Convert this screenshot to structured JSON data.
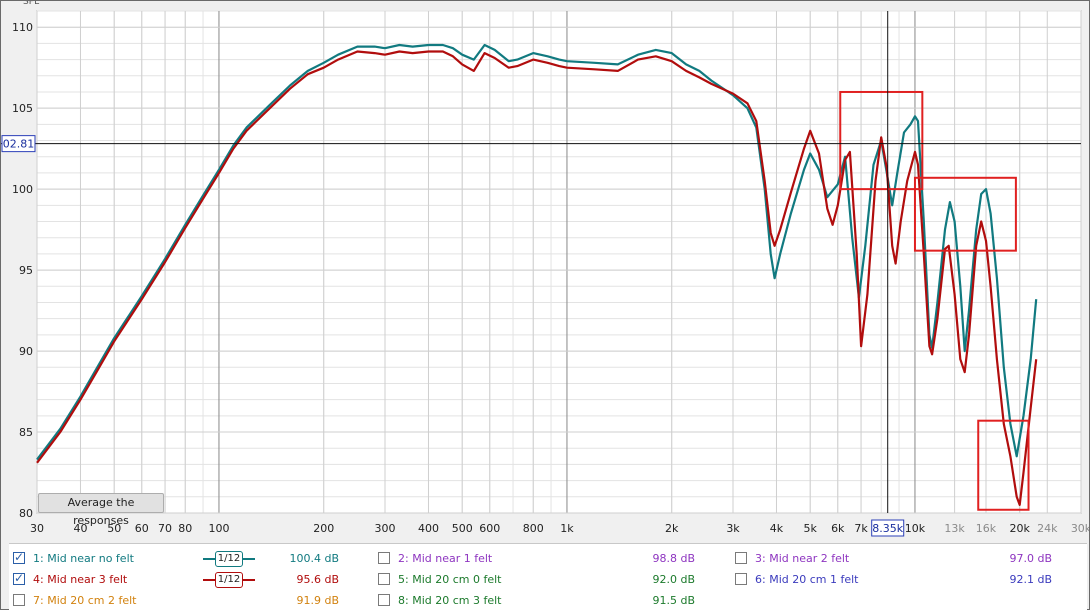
{
  "chart_data": {
    "type": "line",
    "ylabel": "SPL",
    "x_scale": "log",
    "xlim": [
      30,
      30000
    ],
    "ylim": [
      80,
      111
    ],
    "y_ticks": [
      "80",
      "85",
      "90",
      "95",
      "100",
      "105",
      "110"
    ],
    "y_tick_values": [
      80,
      85,
      90,
      95,
      100,
      105,
      110
    ],
    "x_tick_values": [
      30,
      40,
      50,
      60,
      70,
      80,
      100,
      200,
      300,
      400,
      500,
      600,
      800,
      1000,
      2000,
      3000,
      4000,
      5000,
      6000,
      7000,
      10000,
      13000,
      16000,
      20000,
      24000,
      30000
    ],
    "x_ticks": [
      "30",
      "40",
      "50",
      "60",
      "70",
      "80",
      "100",
      "200",
      "300",
      "400",
      "500",
      "600",
      "800",
      "1k",
      "2k",
      "3k",
      "4k",
      "5k",
      "6k",
      "7k",
      "10k",
      "13k",
      "16k",
      "20k",
      "24k",
      "30k"
    ],
    "x_tick_faint": [
      false,
      false,
      false,
      false,
      false,
      false,
      false,
      false,
      false,
      false,
      false,
      false,
      false,
      false,
      false,
      false,
      false,
      false,
      false,
      false,
      false,
      true,
      true,
      false,
      true,
      true
    ],
    "cursor": {
      "x": 8350,
      "y": 102.81,
      "x_label": "8.35k",
      "y_label": "02.81"
    },
    "highlights": [
      {
        "x0": 6100,
        "x1": 10500,
        "y0": 100,
        "y1": 106
      },
      {
        "x0": 10000,
        "x1": 19500,
        "y0": 96.2,
        "y1": 100.7
      },
      {
        "x0": 15200,
        "x1": 21200,
        "y0": 80.2,
        "y1": 85.7
      }
    ],
    "series": [
      {
        "name": "1: Mid near no felt",
        "color": "#117a80",
        "points": [
          [
            30,
            83.3
          ],
          [
            35,
            85.2
          ],
          [
            40,
            87.2
          ],
          [
            45,
            89.1
          ],
          [
            50,
            90.8
          ],
          [
            60,
            93.4
          ],
          [
            70,
            95.7
          ],
          [
            80,
            97.8
          ],
          [
            90,
            99.6
          ],
          [
            100,
            101.2
          ],
          [
            110,
            102.7
          ],
          [
            120,
            103.8
          ],
          [
            140,
            105.2
          ],
          [
            160,
            106.4
          ],
          [
            180,
            107.3
          ],
          [
            200,
            107.8
          ],
          [
            220,
            108.3
          ],
          [
            250,
            108.8
          ],
          [
            280,
            108.8
          ],
          [
            300,
            108.7
          ],
          [
            330,
            108.9
          ],
          [
            360,
            108.8
          ],
          [
            400,
            108.9
          ],
          [
            440,
            108.9
          ],
          [
            470,
            108.7
          ],
          [
            500,
            108.3
          ],
          [
            540,
            108.0
          ],
          [
            580,
            108.9
          ],
          [
            620,
            108.6
          ],
          [
            680,
            107.9
          ],
          [
            720,
            108.0
          ],
          [
            800,
            108.4
          ],
          [
            880,
            108.2
          ],
          [
            950,
            108.0
          ],
          [
            1000,
            107.9
          ],
          [
            1200,
            107.8
          ],
          [
            1400,
            107.7
          ],
          [
            1600,
            108.3
          ],
          [
            1800,
            108.6
          ],
          [
            2000,
            108.4
          ],
          [
            2200,
            107.7
          ],
          [
            2400,
            107.3
          ],
          [
            2600,
            106.7
          ],
          [
            3000,
            105.8
          ],
          [
            3300,
            105.0
          ],
          [
            3500,
            103.8
          ],
          [
            3700,
            100.0
          ],
          [
            3850,
            96.0
          ],
          [
            3950,
            94.5
          ],
          [
            4100,
            96.0
          ],
          [
            4400,
            98.5
          ],
          [
            4800,
            101.2
          ],
          [
            5000,
            102.2
          ],
          [
            5300,
            101.2
          ],
          [
            5600,
            99.5
          ],
          [
            6000,
            100.3
          ],
          [
            6300,
            102.0
          ],
          [
            6600,
            97.0
          ],
          [
            6900,
            93.3
          ],
          [
            7200,
            96.5
          ],
          [
            7600,
            101.5
          ],
          [
            8000,
            103.0
          ],
          [
            8300,
            101.0
          ],
          [
            8600,
            99.0
          ],
          [
            8900,
            101.0
          ],
          [
            9300,
            103.5
          ],
          [
            9700,
            104.0
          ],
          [
            10000,
            104.5
          ],
          [
            10200,
            104.2
          ],
          [
            10600,
            98.0
          ],
          [
            11000,
            91.0
          ],
          [
            11200,
            90.2
          ],
          [
            11600,
            93.0
          ],
          [
            12200,
            97.5
          ],
          [
            12600,
            99.2
          ],
          [
            13000,
            98.0
          ],
          [
            13500,
            94.0
          ],
          [
            13900,
            90.0
          ],
          [
            14300,
            92.5
          ],
          [
            15000,
            97.5
          ],
          [
            15500,
            99.7
          ],
          [
            16000,
            100.0
          ],
          [
            16500,
            98.5
          ],
          [
            17200,
            94.5
          ],
          [
            18000,
            89.0
          ],
          [
            18800,
            85.5
          ],
          [
            19600,
            83.5
          ],
          [
            20500,
            86.0
          ],
          [
            21500,
            89.5
          ],
          [
            22300,
            93.2
          ]
        ]
      },
      {
        "name": "4: Mid near 3 felt",
        "color": "#b10d0d",
        "points": [
          [
            30,
            83.1
          ],
          [
            35,
            85.0
          ],
          [
            40,
            87.0
          ],
          [
            45,
            88.9
          ],
          [
            50,
            90.6
          ],
          [
            60,
            93.2
          ],
          [
            70,
            95.5
          ],
          [
            80,
            97.6
          ],
          [
            90,
            99.4
          ],
          [
            100,
            101.0
          ],
          [
            110,
            102.5
          ],
          [
            120,
            103.6
          ],
          [
            140,
            105.0
          ],
          [
            160,
            106.2
          ],
          [
            180,
            107.1
          ],
          [
            200,
            107.5
          ],
          [
            220,
            108.0
          ],
          [
            250,
            108.5
          ],
          [
            280,
            108.4
          ],
          [
            300,
            108.3
          ],
          [
            330,
            108.5
          ],
          [
            360,
            108.4
          ],
          [
            400,
            108.5
          ],
          [
            440,
            108.5
          ],
          [
            470,
            108.2
          ],
          [
            500,
            107.7
          ],
          [
            540,
            107.3
          ],
          [
            580,
            108.4
          ],
          [
            620,
            108.1
          ],
          [
            680,
            107.5
          ],
          [
            720,
            107.6
          ],
          [
            800,
            108.0
          ],
          [
            880,
            107.8
          ],
          [
            950,
            107.6
          ],
          [
            1000,
            107.5
          ],
          [
            1200,
            107.4
          ],
          [
            1400,
            107.3
          ],
          [
            1600,
            108.0
          ],
          [
            1800,
            108.2
          ],
          [
            2000,
            107.9
          ],
          [
            2200,
            107.3
          ],
          [
            2400,
            106.9
          ],
          [
            2600,
            106.5
          ],
          [
            3000,
            105.9
          ],
          [
            3300,
            105.3
          ],
          [
            3500,
            104.2
          ],
          [
            3700,
            100.5
          ],
          [
            3850,
            97.3
          ],
          [
            3950,
            96.5
          ],
          [
            4100,
            97.5
          ],
          [
            4400,
            99.8
          ],
          [
            4800,
            102.5
          ],
          [
            5000,
            103.6
          ],
          [
            5300,
            102.2
          ],
          [
            5600,
            98.8
          ],
          [
            5800,
            97.8
          ],
          [
            6000,
            99.0
          ],
          [
            6300,
            101.8
          ],
          [
            6500,
            102.3
          ],
          [
            6800,
            96.0
          ],
          [
            7000,
            90.3
          ],
          [
            7300,
            93.5
          ],
          [
            7700,
            100.5
          ],
          [
            8000,
            103.2
          ],
          [
            8300,
            101.3
          ],
          [
            8600,
            96.5
          ],
          [
            8800,
            95.4
          ],
          [
            9100,
            98.0
          ],
          [
            9500,
            100.5
          ],
          [
            10000,
            102.3
          ],
          [
            10200,
            101.5
          ],
          [
            10600,
            96.0
          ],
          [
            11000,
            90.3
          ],
          [
            11200,
            89.8
          ],
          [
            11600,
            92.0
          ],
          [
            12200,
            96.3
          ],
          [
            12500,
            96.5
          ],
          [
            13000,
            93.5
          ],
          [
            13500,
            89.5
          ],
          [
            13900,
            88.7
          ],
          [
            14300,
            91.0
          ],
          [
            15000,
            96.5
          ],
          [
            15500,
            98.0
          ],
          [
            16000,
            96.8
          ],
          [
            16500,
            94.0
          ],
          [
            17200,
            89.5
          ],
          [
            18000,
            85.5
          ],
          [
            18800,
            83.5
          ],
          [
            19600,
            81.0
          ],
          [
            20000,
            80.5
          ],
          [
            20500,
            82.5
          ],
          [
            21500,
            86.5
          ],
          [
            22300,
            89.5
          ]
        ]
      }
    ]
  },
  "legend": [
    {
      "name": "1: Mid near no felt",
      "value": "100.4 dB",
      "checked": true,
      "color": "#117a80",
      "smoothing": "1/12"
    },
    {
      "name": "2: Mid near 1 felt",
      "value": "98.8 dB",
      "checked": false,
      "color": "#8e35c0"
    },
    {
      "name": "3: Mid near 2 felt",
      "value": "97.0 dB",
      "checked": false,
      "color": "#8e35c0"
    },
    {
      "name": "4: Mid near 3 felt",
      "value": "95.6 dB",
      "checked": true,
      "color": "#b10d0d",
      "smoothing": "1/12"
    },
    {
      "name": "5: Mid 20 cm 0 felt",
      "value": "92.0 dB",
      "checked": false,
      "color": "#1c7a2c"
    },
    {
      "name": "6: Mid 20 cm 1 felt",
      "value": "92.1 dB",
      "checked": false,
      "color": "#3b3bbd"
    },
    {
      "name": "7: Mid 20 cm 2 felt",
      "value": "91.9 dB",
      "checked": false,
      "color": "#d2820f"
    },
    {
      "name": "8: Mid 20 cm 3 felt",
      "value": "91.5 dB",
      "checked": false,
      "color": "#1c7a2c"
    }
  ],
  "button_label": "Average the responses"
}
